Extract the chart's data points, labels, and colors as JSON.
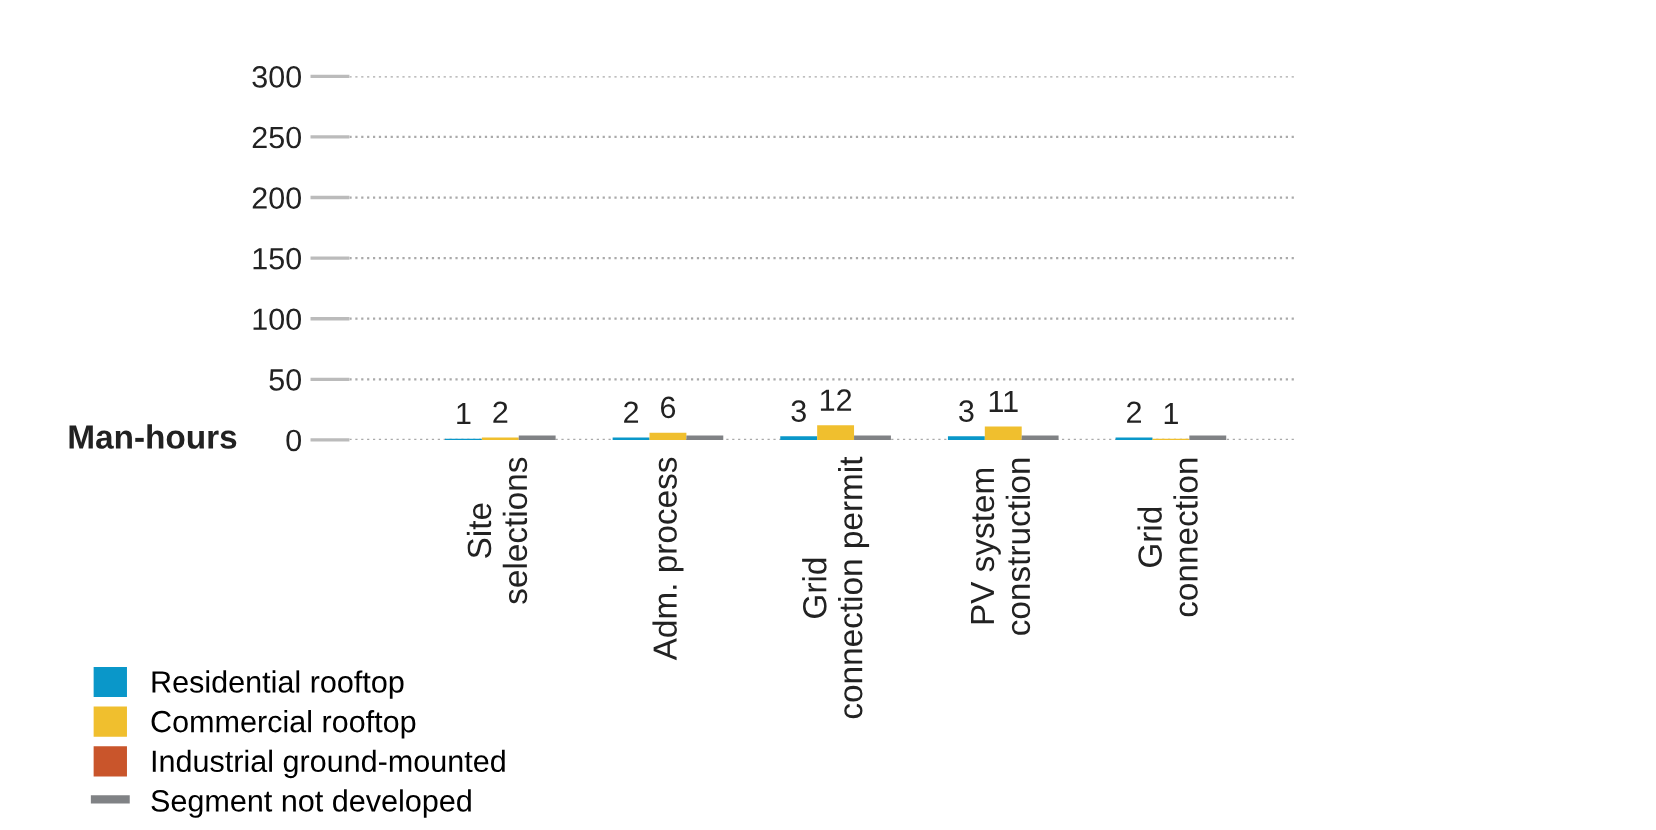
{
  "chart_data": {
    "type": "bar",
    "ylabel": "Man-hours",
    "categories": [
      "Site\nselections",
      "Adm. process",
      "Grid\nconnection permit",
      "PV system\nconstruction",
      "Grid\nconnection"
    ],
    "series": [
      {
        "name": "Residential rooftop",
        "color": "#0a97c9",
        "values": [
          1,
          2,
          3,
          3,
          2
        ],
        "value_labels": [
          "1",
          "2",
          "3",
          "3",
          "2"
        ]
      },
      {
        "name": "Commercial rooftop",
        "color": "#f0bf2e",
        "values": [
          2,
          6,
          12,
          11,
          1
        ],
        "value_labels": [
          "2",
          "6",
          "12",
          "11",
          "1"
        ]
      },
      {
        "name": "Industrial ground-mounted",
        "color": "#c9552b",
        "values": [
          null,
          null,
          null,
          null,
          null
        ]
      },
      {
        "name": "Segment not developed",
        "color": "#808285",
        "values": [
          null,
          null,
          null,
          null,
          null
        ]
      }
    ],
    "ylim": [
      0,
      300
    ],
    "yticks": [
      0,
      50,
      100,
      150,
      200,
      250,
      300
    ],
    "grid": "y",
    "legend": "bottom left"
  }
}
